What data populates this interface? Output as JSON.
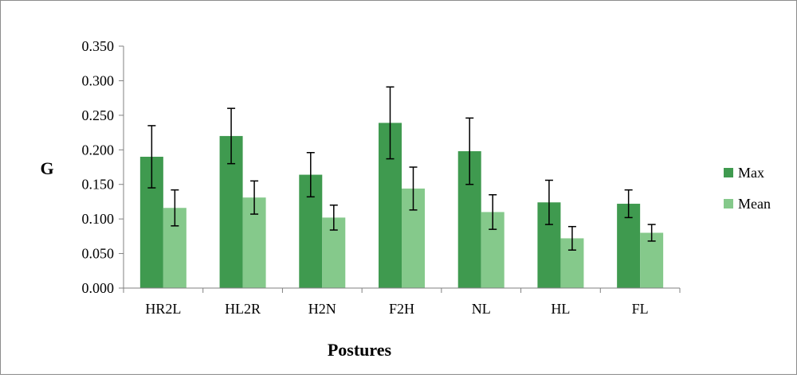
{
  "chart_data": {
    "type": "bar",
    "title": "",
    "xlabel": "Postures",
    "ylabel": "G",
    "ylim": [
      0,
      0.35
    ],
    "yticks": [
      "0.000",
      "0.050",
      "0.100",
      "0.150",
      "0.200",
      "0.250",
      "0.300",
      "0.350"
    ],
    "categories": [
      "HR2L",
      "HL2R",
      "H2N",
      "F2H",
      "NL",
      "HL",
      "FL"
    ],
    "series": [
      {
        "name": "Max",
        "color": "#3f9a4f",
        "values": [
          0.19,
          0.22,
          0.164,
          0.239,
          0.198,
          0.124,
          0.122
        ],
        "error": [
          0.045,
          0.04,
          0.032,
          0.052,
          0.048,
          0.032,
          0.02
        ]
      },
      {
        "name": "Mean",
        "color": "#85c98b",
        "values": [
          0.116,
          0.131,
          0.102,
          0.144,
          0.11,
          0.072,
          0.08
        ],
        "error": [
          0.026,
          0.024,
          0.018,
          0.031,
          0.025,
          0.017,
          0.012
        ]
      }
    ],
    "grid": false,
    "legend": "right"
  }
}
